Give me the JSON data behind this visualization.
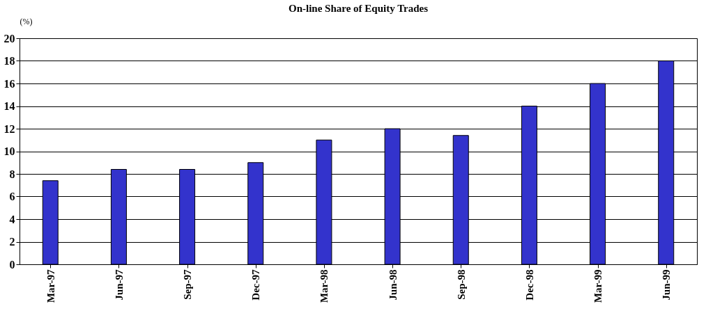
{
  "chart_data": {
    "type": "bar",
    "title": "On-line Share of Equity Trades",
    "ylabel": "(%)",
    "categories": [
      "Mar-97",
      "Jun-97",
      "Sep-97",
      "Dec-97",
      "Mar-98",
      "Jun-98",
      "Sep-98",
      "Dec-98",
      "Mar-99",
      "Jun-99"
    ],
    "values": [
      7.4,
      8.4,
      8.4,
      9,
      11,
      12,
      11.4,
      14,
      16,
      18
    ],
    "color": "#3333cc",
    "ylim": [
      0,
      20
    ],
    "yticks": [
      0,
      2,
      4,
      6,
      8,
      10,
      12,
      14,
      16,
      18,
      20
    ],
    "grid": "y"
  }
}
